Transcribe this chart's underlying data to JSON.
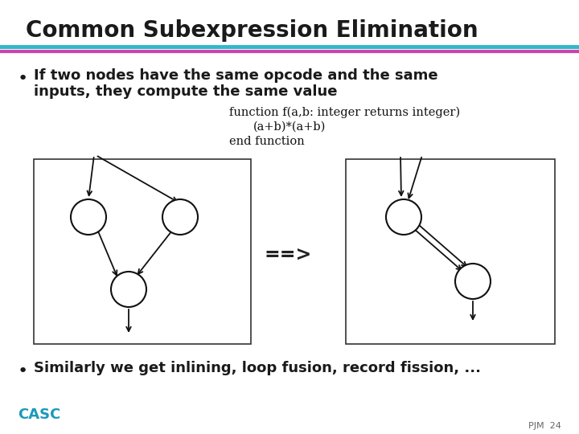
{
  "title": "Common Subexpression Elimination",
  "title_color": "#1a1a1a",
  "title_fontsize": 20,
  "separator_color1": "#2eb8cc",
  "separator_color2": "#cc44aa",
  "bullet1_line1": "If two nodes have the same opcode and the same",
  "bullet1_line2": "inputs, they compute the same value",
  "code_line1": "function f(a,b: integer returns integer)",
  "code_line2": "(a+b)*(a+b)",
  "code_line3": "end function",
  "bullet2": "Similarly we get inlining, loop fusion, record fission, ...",
  "bullet_color": "#1a1a1a",
  "bullet_dot_color": "#1a1a1a",
  "casc_text": "CASC",
  "casc_color": "#1a99bb",
  "page_text": "PJM  24",
  "page_color": "#666666",
  "arrow_text": "==>",
  "background_color": "#ffffff",
  "node_color": "#ffffff",
  "node_edge_color": "#111111",
  "box_edge_color": "#333333",
  "line_color": "#111111"
}
